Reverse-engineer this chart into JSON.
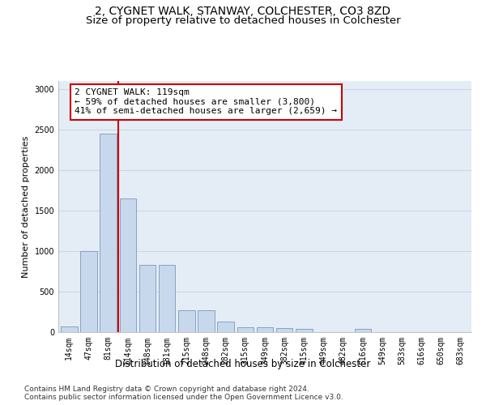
{
  "title_line1": "2, CYGNET WALK, STANWAY, COLCHESTER, CO3 8ZD",
  "title_line2": "Size of property relative to detached houses in Colchester",
  "xlabel": "Distribution of detached houses by size in Colchester",
  "ylabel": "Number of detached properties",
  "bar_labels": [
    "14sqm",
    "47sqm",
    "81sqm",
    "114sqm",
    "148sqm",
    "181sqm",
    "215sqm",
    "248sqm",
    "282sqm",
    "315sqm",
    "349sqm",
    "382sqm",
    "415sqm",
    "449sqm",
    "482sqm",
    "516sqm",
    "549sqm",
    "583sqm",
    "616sqm",
    "650sqm",
    "683sqm"
  ],
  "bar_values": [
    75,
    1000,
    2450,
    1650,
    830,
    830,
    270,
    270,
    130,
    65,
    65,
    55,
    40,
    0,
    0,
    40,
    0,
    0,
    0,
    0,
    0
  ],
  "bar_color": "#c8d8ec",
  "bar_edge_color": "#7799bb",
  "vline_x_index": 3,
  "vline_color": "#cc0000",
  "annotation_text": "2 CYGNET WALK: 119sqm\n← 59% of detached houses are smaller (3,800)\n41% of semi-detached houses are larger (2,659) →",
  "annotation_box_facecolor": "#ffffff",
  "annotation_box_edgecolor": "#cc0000",
  "ylim": [
    0,
    3100
  ],
  "yticks": [
    0,
    500,
    1000,
    1500,
    2000,
    2500,
    3000
  ],
  "grid_color": "#c8d8e8",
  "bg_color": "#e4edf6",
  "footnote": "Contains HM Land Registry data © Crown copyright and database right 2024.\nContains public sector information licensed under the Open Government Licence v3.0.",
  "title1_fontsize": 10,
  "title2_fontsize": 9.5,
  "xlabel_fontsize": 8.5,
  "ylabel_fontsize": 8,
  "tick_fontsize": 7,
  "annot_fontsize": 8,
  "footnote_fontsize": 6.5
}
